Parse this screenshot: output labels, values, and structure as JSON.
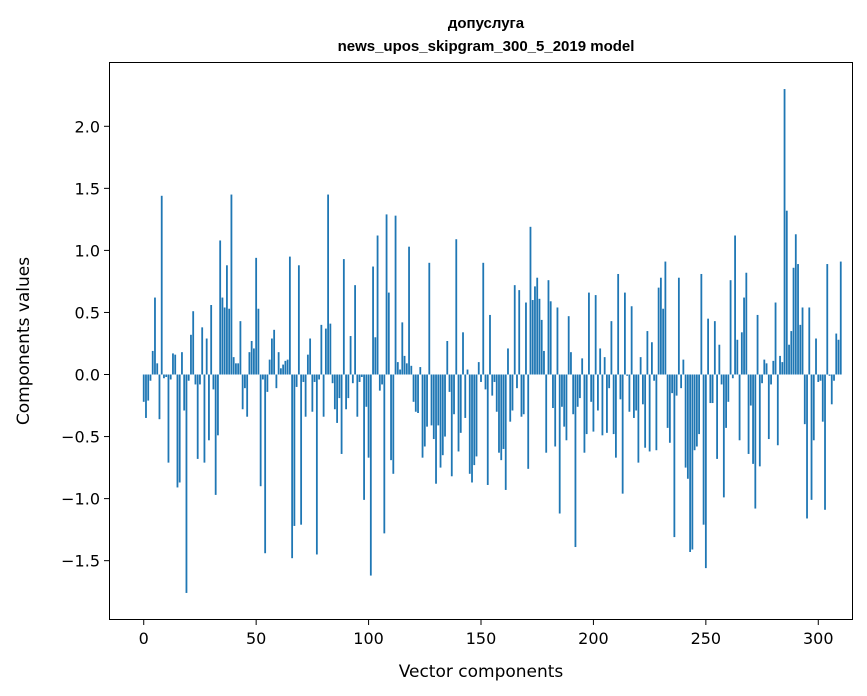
{
  "chart_data": {
    "type": "bar",
    "title": "допуслуга",
    "subtitle": "news_upos_skipgram_300_5_2019 model",
    "xlabel": "Vector components",
    "ylabel": "Components values",
    "xlim": [
      -15,
      315
    ],
    "ylim": [
      -1.97,
      2.51
    ],
    "x_ticks": [
      0,
      50,
      100,
      150,
      200,
      250,
      300
    ],
    "x_tick_labels": [
      "0",
      "50",
      "100",
      "150",
      "200",
      "250",
      "300"
    ],
    "y_ticks": [
      -1.5,
      -1.0,
      -0.5,
      0.0,
      0.5,
      1.0,
      1.5,
      2.0
    ],
    "y_tick_labels": [
      "−1.5",
      "−1.0",
      "−0.5",
      "0.0",
      "0.5",
      "1.0",
      "1.5",
      "2.0"
    ],
    "grid": false,
    "bar_color": "#1f77b4",
    "values": [
      -0.22,
      -0.35,
      -0.21,
      -0.05,
      0.19,
      0.62,
      0.09,
      -0.36,
      1.44,
      -0.03,
      -0.02,
      -0.71,
      -0.04,
      0.17,
      0.16,
      -0.91,
      -0.87,
      0.18,
      -0.29,
      -1.76,
      -0.05,
      0.32,
      0.51,
      -0.08,
      -0.68,
      -0.08,
      0.38,
      -0.71,
      0.29,
      -0.53,
      0.56,
      -0.12,
      -0.97,
      -0.49,
      1.08,
      0.62,
      0.54,
      0.88,
      0.53,
      1.45,
      0.14,
      0.09,
      0.09,
      0.43,
      -0.28,
      -0.11,
      -0.34,
      0.18,
      0.27,
      0.21,
      0.94,
      0.53,
      -0.9,
      -0.04,
      -1.44,
      -0.14,
      0.12,
      0.29,
      0.36,
      -0.11,
      0.18,
      0.05,
      0.08,
      0.11,
      0.12,
      0.95,
      -1.48,
      -1.22,
      -0.1,
      0.88,
      -1.21,
      -0.06,
      -0.34,
      0.16,
      0.29,
      -0.3,
      -0.06,
      -1.45,
      -0.04,
      0.4,
      -0.34,
      0.37,
      1.45,
      0.41,
      -0.07,
      -0.28,
      -0.39,
      -0.19,
      -0.64,
      0.93,
      -0.28,
      -0.19,
      0.31,
      -0.07,
      0.72,
      -0.34,
      -0.06,
      -0.02,
      -1.01,
      -0.26,
      -0.67,
      -1.62,
      0.87,
      0.3,
      1.12,
      -0.13,
      -0.08,
      -1.28,
      1.29,
      0.66,
      -0.69,
      -0.8,
      1.28,
      0.1,
      0.04,
      0.42,
      0.15,
      0.09,
      1.03,
      0.07,
      -0.22,
      -0.3,
      -0.31,
      0.06,
      -0.67,
      -0.58,
      -0.42,
      0.9,
      -0.41,
      -0.52,
      -0.88,
      -0.41,
      -0.75,
      -0.65,
      -0.5,
      0.27,
      -0.14,
      -0.82,
      -0.32,
      1.09,
      -0.62,
      -0.47,
      0.34,
      -0.35,
      0.04,
      -0.8,
      -0.87,
      -0.73,
      -0.66,
      0.1,
      -0.06,
      0.9,
      -0.12,
      -0.89,
      0.48,
      -0.17,
      -0.06,
      -0.3,
      -0.63,
      -0.69,
      -0.6,
      -0.93,
      0.21,
      -0.38,
      -0.29,
      0.72,
      -0.11,
      0.68,
      -0.34,
      -0.32,
      0.58,
      -0.76,
      1.19,
      0.6,
      0.71,
      0.78,
      0.61,
      0.44,
      0.19,
      -0.63,
      0.76,
      0.59,
      -0.27,
      -0.58,
      0.54,
      -1.12,
      -0.26,
      -0.42,
      -0.53,
      0.47,
      0.18,
      -0.32,
      -1.39,
      -0.26,
      -0.19,
      0.13,
      -0.63,
      -0.48,
      0.66,
      -0.22,
      -0.46,
      0.64,
      -0.29,
      0.21,
      -0.49,
      0.14,
      -0.47,
      -0.11,
      0.43,
      -0.48,
      -0.67,
      0.81,
      -0.2,
      -0.96,
      0.66,
      -0.01,
      -0.3,
      0.55,
      -0.35,
      -0.29,
      -0.71,
      0.14,
      -0.24,
      -0.59,
      0.35,
      -0.62,
      0.26,
      -0.05,
      -0.61,
      0.7,
      0.78,
      0.53,
      0.91,
      -0.43,
      -0.55,
      -0.15,
      -1.31,
      -0.17,
      0.78,
      -0.11,
      0.12,
      -0.75,
      -0.84,
      -1.43,
      -1.41,
      -0.61,
      -0.58,
      -0.48,
      0.81,
      -1.21,
      -1.56,
      0.45,
      -0.23,
      -0.23,
      0.43,
      -0.68,
      0.24,
      -0.08,
      -0.99,
      -0.43,
      -0.22,
      0.76,
      -0.03,
      1.12,
      0.28,
      -0.53,
      0.34,
      0.62,
      0.82,
      -0.64,
      -0.25,
      -0.72,
      -1.08,
      0.48,
      -0.74,
      -0.07,
      0.12,
      0.09,
      -0.52,
      -0.08,
      0.11,
      0.58,
      -0.57,
      0.15,
      0.1,
      2.3,
      1.32,
      0.24,
      0.35,
      0.86,
      1.13,
      0.89,
      0.4,
      0.54,
      -0.4,
      -1.16,
      0.54,
      -1.01,
      -0.53,
      0.29,
      -0.06,
      -0.05,
      -0.38,
      -1.09,
      0.89,
      -0.01,
      -0.24,
      -0.05,
      0.33,
      0.28,
      0.91
    ]
  }
}
